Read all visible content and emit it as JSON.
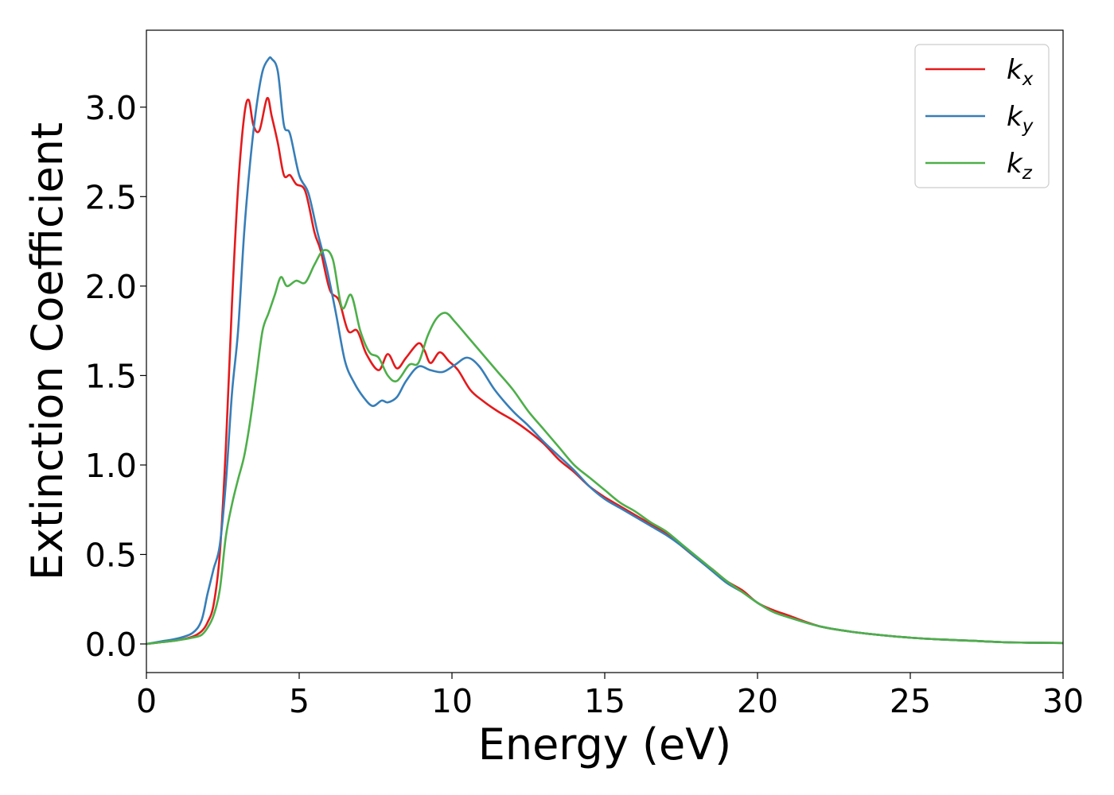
{
  "chart_data": {
    "type": "line",
    "title": "",
    "xlabel": "Energy (eV)",
    "ylabel": "Extinction Coefficient",
    "xlim": [
      0,
      30
    ],
    "ylim": [
      -0.16,
      3.43
    ],
    "xticks": [
      0,
      5,
      10,
      15,
      20,
      25,
      30
    ],
    "xtick_labels": [
      "0",
      "5",
      "10",
      "15",
      "20",
      "25",
      "30"
    ],
    "yticks": [
      0.0,
      0.5,
      1.0,
      1.5,
      2.0,
      2.5,
      3.0
    ],
    "ytick_labels": [
      "0.0",
      "0.5",
      "1.0",
      "1.5",
      "2.0",
      "2.5",
      "3.0"
    ],
    "grid": false,
    "legend_position": "top-right",
    "series": [
      {
        "name": "k_x",
        "label_base": "k",
        "label_sub": "x",
        "color": "#e41a1c",
        "x": [
          0,
          0.5,
          1.0,
          1.5,
          1.8,
          2.0,
          2.2,
          2.4,
          2.6,
          2.8,
          3.0,
          3.2,
          3.35,
          3.5,
          3.7,
          3.95,
          4.1,
          4.3,
          4.5,
          4.7,
          4.9,
          5.2,
          5.5,
          5.7,
          6.0,
          6.3,
          6.6,
          6.9,
          7.2,
          7.6,
          7.9,
          8.2,
          8.5,
          8.9,
          9.1,
          9.3,
          9.6,
          9.9,
          10.2,
          10.6,
          11.0,
          11.5,
          12.0,
          12.5,
          13.0,
          13.5,
          14.0,
          14.5,
          15.0,
          15.5,
          16.0,
          16.5,
          17.0,
          17.5,
          18.0,
          18.5,
          19.0,
          19.5,
          20.0,
          20.5,
          21.0,
          22.0,
          23.0,
          24.0,
          25.0,
          26.0,
          27.0,
          28.0,
          29.0,
          30.0
        ],
        "y": [
          0.0,
          0.01,
          0.02,
          0.04,
          0.07,
          0.12,
          0.22,
          0.5,
          1.1,
          1.9,
          2.55,
          2.95,
          3.04,
          2.9,
          2.87,
          3.05,
          2.95,
          2.8,
          2.62,
          2.62,
          2.57,
          2.53,
          2.3,
          2.2,
          1.98,
          1.92,
          1.75,
          1.75,
          1.62,
          1.53,
          1.62,
          1.54,
          1.6,
          1.68,
          1.64,
          1.57,
          1.63,
          1.58,
          1.53,
          1.42,
          1.36,
          1.3,
          1.25,
          1.19,
          1.12,
          1.03,
          0.96,
          0.88,
          0.82,
          0.77,
          0.72,
          0.67,
          0.62,
          0.55,
          0.48,
          0.42,
          0.35,
          0.3,
          0.23,
          0.19,
          0.16,
          0.1,
          0.07,
          0.05,
          0.035,
          0.025,
          0.018,
          0.01,
          0.007,
          0.005
        ]
      },
      {
        "name": "k_y",
        "label_base": "k",
        "label_sub": "y",
        "color": "#377eb8",
        "x": [
          0,
          0.5,
          1.0,
          1.5,
          1.8,
          2.0,
          2.2,
          2.4,
          2.6,
          2.8,
          3.0,
          3.2,
          3.4,
          3.6,
          3.8,
          4.0,
          4.1,
          4.3,
          4.5,
          4.7,
          5.0,
          5.3,
          5.6,
          5.9,
          6.2,
          6.5,
          6.8,
          7.1,
          7.4,
          7.7,
          7.9,
          8.2,
          8.5,
          8.9,
          9.3,
          9.7,
          10.1,
          10.5,
          10.9,
          11.4,
          12.0,
          12.5,
          13.0,
          13.5,
          14.0,
          14.5,
          15.0,
          15.5,
          16.0,
          16.5,
          17.0,
          17.5,
          18.0,
          18.5,
          19.0,
          19.5,
          20.0,
          20.5,
          21.0,
          22.0,
          23.0,
          24.0,
          25.0,
          26.0,
          27.0,
          28.0,
          29.0,
          30.0
        ],
        "y": [
          0.0,
          0.015,
          0.03,
          0.06,
          0.13,
          0.28,
          0.42,
          0.55,
          0.9,
          1.4,
          1.75,
          2.3,
          2.7,
          3.0,
          3.2,
          3.27,
          3.27,
          3.2,
          2.9,
          2.85,
          2.62,
          2.52,
          2.3,
          2.1,
          1.85,
          1.58,
          1.46,
          1.38,
          1.33,
          1.36,
          1.35,
          1.38,
          1.47,
          1.55,
          1.53,
          1.52,
          1.56,
          1.6,
          1.55,
          1.42,
          1.3,
          1.22,
          1.13,
          1.05,
          0.97,
          0.88,
          0.81,
          0.76,
          0.71,
          0.66,
          0.61,
          0.55,
          0.48,
          0.41,
          0.34,
          0.29,
          0.23,
          0.18,
          0.15,
          0.1,
          0.07,
          0.05,
          0.035,
          0.025,
          0.018,
          0.01,
          0.007,
          0.005
        ]
      },
      {
        "name": "k_z",
        "label_base": "k",
        "label_sub": "z",
        "color": "#4daf4a",
        "x": [
          0,
          0.5,
          1.0,
          1.5,
          1.8,
          2.0,
          2.2,
          2.4,
          2.6,
          2.8,
          3.0,
          3.2,
          3.4,
          3.6,
          3.8,
          4.0,
          4.2,
          4.4,
          4.6,
          4.9,
          5.2,
          5.5,
          5.8,
          6.1,
          6.4,
          6.7,
          7.0,
          7.3,
          7.6,
          7.9,
          8.2,
          8.6,
          8.9,
          9.2,
          9.5,
          9.8,
          10.1,
          10.5,
          11.0,
          11.5,
          12.0,
          12.5,
          13.0,
          13.5,
          14.0,
          14.5,
          15.0,
          15.5,
          16.0,
          16.5,
          17.0,
          17.5,
          18.0,
          18.5,
          19.0,
          19.5,
          20.0,
          20.5,
          21.0,
          22.0,
          23.0,
          24.0,
          25.0,
          26.0,
          27.0,
          28.0,
          29.0,
          30.0
        ],
        "y": [
          0.0,
          0.01,
          0.02,
          0.035,
          0.05,
          0.09,
          0.16,
          0.3,
          0.6,
          0.78,
          0.92,
          1.05,
          1.25,
          1.5,
          1.75,
          1.85,
          1.95,
          2.05,
          2.0,
          2.03,
          2.02,
          2.12,
          2.2,
          2.15,
          1.88,
          1.95,
          1.75,
          1.63,
          1.6,
          1.5,
          1.47,
          1.56,
          1.57,
          1.72,
          1.82,
          1.85,
          1.8,
          1.72,
          1.62,
          1.52,
          1.42,
          1.3,
          1.2,
          1.1,
          1.0,
          0.93,
          0.86,
          0.79,
          0.74,
          0.68,
          0.63,
          0.56,
          0.49,
          0.42,
          0.35,
          0.29,
          0.23,
          0.18,
          0.15,
          0.1,
          0.07,
          0.05,
          0.035,
          0.025,
          0.018,
          0.01,
          0.007,
          0.005
        ]
      }
    ]
  }
}
